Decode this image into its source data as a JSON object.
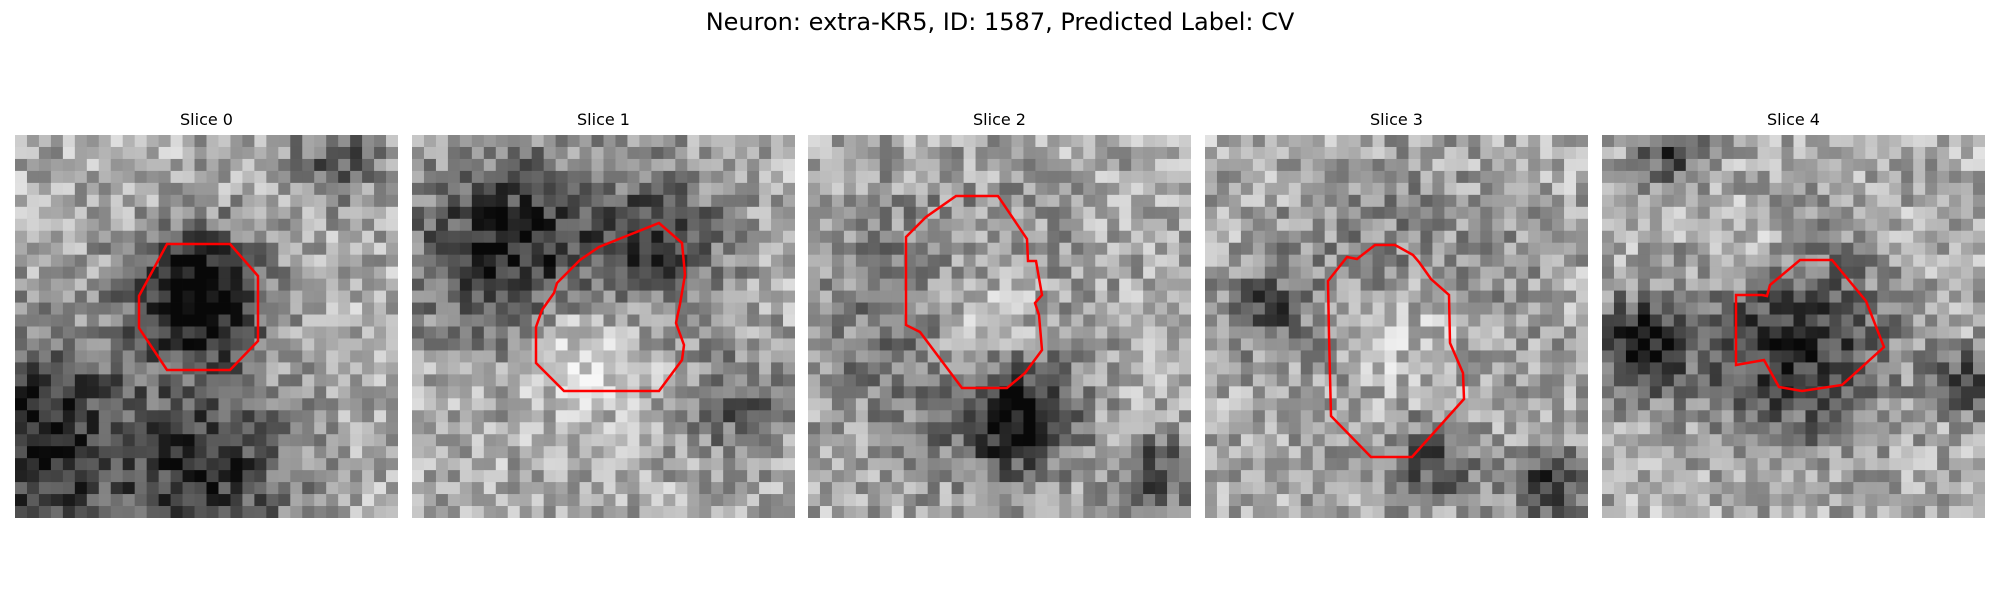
{
  "figure": {
    "title": "Neuron: extra-KR5, ID: 1587, Predicted Label: CV"
  },
  "panels": [
    {
      "title": "Slice 0"
    },
    {
      "title": "Slice 1"
    },
    {
      "title": "Slice 2"
    },
    {
      "title": "Slice 3"
    },
    {
      "title": "Slice 4"
    }
  ],
  "colors": {
    "contour": "#ff0000",
    "colormap": "gray"
  }
}
